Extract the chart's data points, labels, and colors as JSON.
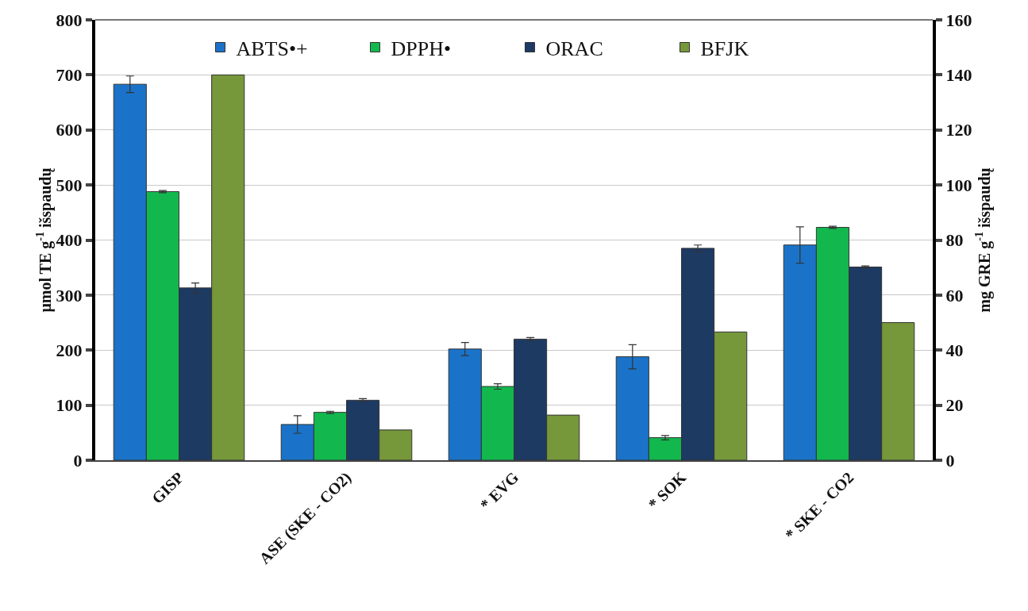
{
  "chart_data": {
    "type": "bar",
    "categories": [
      "GISP",
      "ASE (SKE - CO2)",
      "* EVG",
      "* SOK",
      "* SKE - CO2"
    ],
    "ylabel": "μmol TE g$^{-1}$ išspaudų",
    "y2label": "mg GRE g$^{-1}$ išspaudų",
    "ylim": [
      0,
      800
    ],
    "yticks": [
      0,
      100,
      200,
      300,
      400,
      500,
      600,
      700,
      800
    ],
    "y2lim": [
      0,
      160
    ],
    "y2ticks": [
      0,
      20,
      40,
      60,
      80,
      100,
      120,
      140,
      160
    ],
    "grid": "y",
    "legend": "top",
    "series": [
      {
        "name": "ABTS•+",
        "color": "#1a73c8",
        "values": [
          683,
          65,
          202,
          188,
          391
        ],
        "errors": [
          15,
          16,
          12,
          22,
          33
        ]
      },
      {
        "name": "DPPH•",
        "color": "#12b84e",
        "values": [
          488,
          87,
          134,
          41,
          423
        ],
        "errors": [
          2,
          2,
          5,
          4,
          2
        ]
      },
      {
        "name": "ORAC",
        "color": "#1d3a63",
        "values": [
          313,
          109,
          220,
          385,
          351
        ],
        "errors": [
          9,
          3,
          3,
          6,
          2
        ]
      },
      {
        "name": "BFJK",
        "color": "#76973a",
        "values": [
          140,
          11,
          16.4,
          46.6,
          50
        ],
        "axis": "y2"
      }
    ]
  }
}
